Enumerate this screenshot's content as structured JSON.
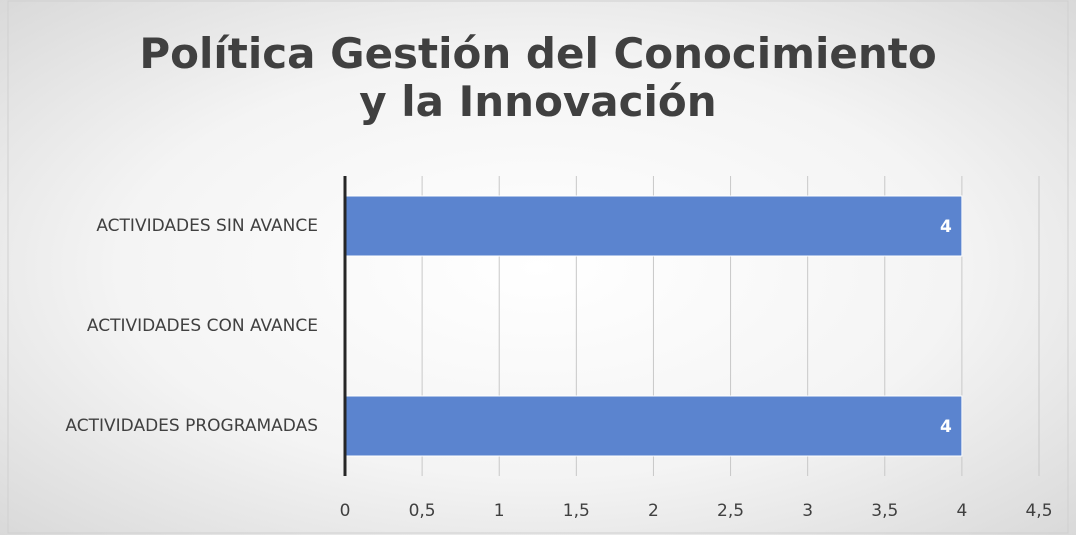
{
  "chart_data": {
    "type": "bar",
    "orientation": "horizontal",
    "title": "Política Gestión del Conocimiento y la Innovación",
    "categories": [
      "ACTIVIDADES SIN AVANCE",
      "ACTIVIDADES CON AVANCE",
      "ACTIVIDADES PROGRAMADAS"
    ],
    "values": [
      4,
      null,
      4
    ],
    "color": "#5b84cf",
    "xlim": [
      0,
      4.5
    ],
    "xticks": [
      0,
      {
        "value": 0.5,
        "label": "0,5"
      },
      1,
      {
        "value": 1.5,
        "label": "1,5"
      },
      2,
      {
        "value": 2.5,
        "label": "2,5"
      },
      3,
      {
        "value": 3.5,
        "label": "3,5"
      },
      4,
      {
        "value": 4.5,
        "label": "4,5"
      }
    ],
    "grid": true
  }
}
